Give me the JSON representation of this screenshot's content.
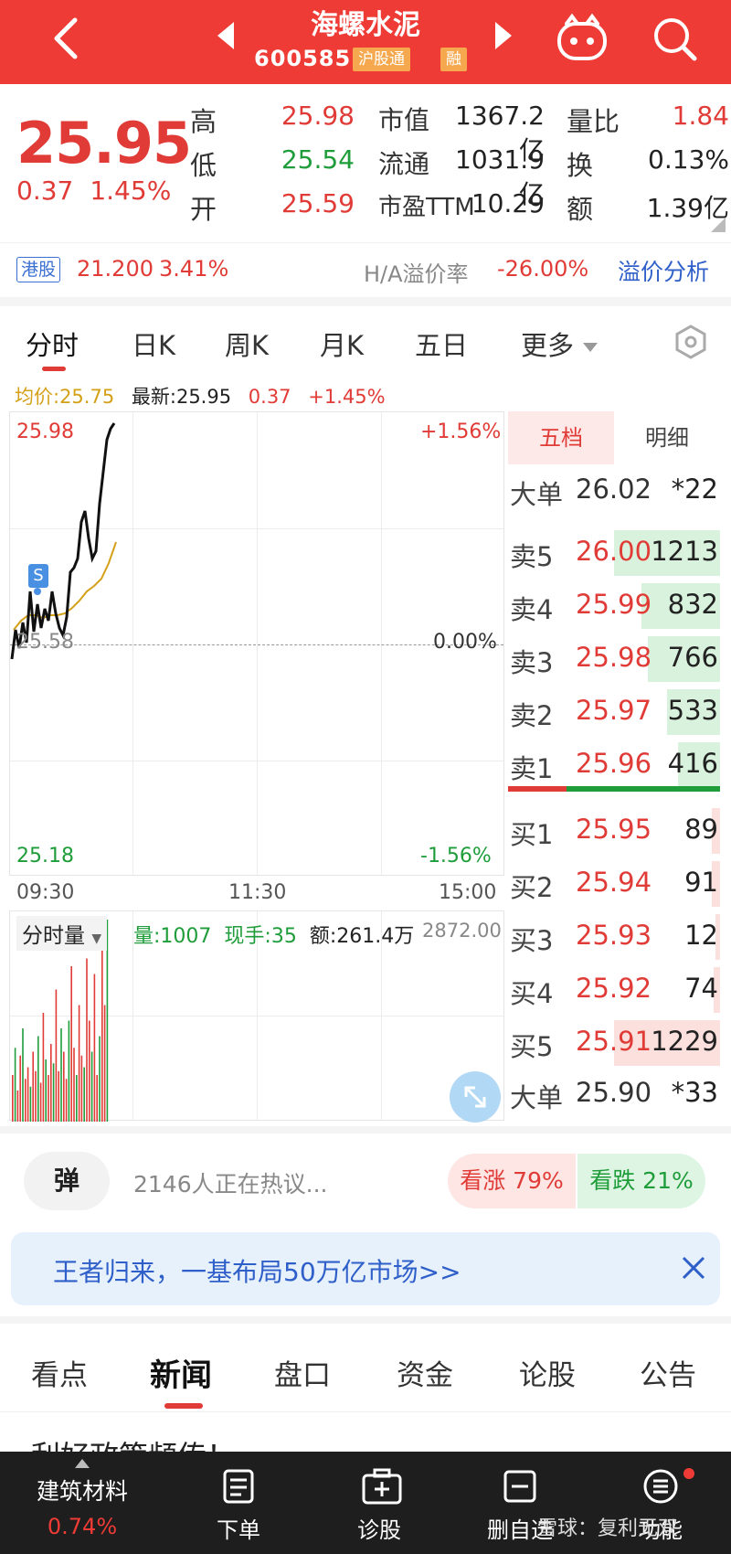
{
  "header": {
    "title": "海螺水泥",
    "code": "600585",
    "tags": [
      "沪股通",
      "融"
    ]
  },
  "quote": {
    "price": "25.95",
    "change": "0.37",
    "change_pct": "1.45%",
    "fields": [
      {
        "label": "高",
        "value": "25.98"
      },
      {
        "label": "低",
        "value": "25.54"
      },
      {
        "label": "开",
        "value": "25.59"
      }
    ],
    "mid_fields": [
      {
        "label": "市值",
        "value": "1367.2亿"
      },
      {
        "label": "流通",
        "value": "1031.9亿"
      },
      {
        "label": "市盈TTM",
        "value": "10.29"
      }
    ],
    "right_fields": [
      {
        "label": "量比",
        "value": "1.84"
      },
      {
        "label": "换",
        "value": "0.13%"
      },
      {
        "label": "额",
        "value": "1.39亿"
      }
    ]
  },
  "hk": {
    "tag": "港股",
    "price": "21.200",
    "pct": "3.41%",
    "premium_label": "H/A溢价率",
    "premium_value": "-26.00%",
    "link": "溢价分析"
  },
  "tabs": [
    "分时",
    "日K",
    "周K",
    "月K",
    "五日",
    "更多"
  ],
  "infoline": {
    "avg": "均价:25.75",
    "latest": "最新:25.95",
    "chg": "0.37",
    "pct": "+1.45%"
  },
  "chart": {
    "y_top": "25.98",
    "y_mid": "25.58",
    "y_bottom": "25.18",
    "pct_top": "+1.56%",
    "pct_mid": "0.00%",
    "pct_bottom": "-1.56%",
    "x_labels": [
      "09:30",
      "11:30",
      "15:00"
    ],
    "marker": "S"
  },
  "volume": {
    "selector": "分时量",
    "vol": "量:1007",
    "hand": "现手:35",
    "amount": "额:261.4万",
    "max": "2872.00"
  },
  "orderbook": {
    "tabs": [
      "五档",
      "明细"
    ],
    "big_sell": {
      "label": "大单",
      "price": "26.02",
      "vol": "*22"
    },
    "asks": [
      {
        "label": "卖5",
        "price": "26.00",
        "vol": "1213",
        "bar": 0.5
      },
      {
        "label": "卖4",
        "price": "25.99",
        "vol": "832",
        "bar": 0.37
      },
      {
        "label": "卖3",
        "price": "25.98",
        "vol": "766",
        "bar": 0.34
      },
      {
        "label": "卖2",
        "price": "25.97",
        "vol": "533",
        "bar": 0.25
      },
      {
        "label": "卖1",
        "price": "25.96",
        "vol": "416",
        "bar": 0.2
      }
    ],
    "bids": [
      {
        "label": "买1",
        "price": "25.95",
        "vol": "89",
        "bar": 0.04
      },
      {
        "label": "买2",
        "price": "25.94",
        "vol": "91",
        "bar": 0.04
      },
      {
        "label": "买3",
        "price": "25.93",
        "vol": "12",
        "bar": 0.02
      },
      {
        "label": "买4",
        "price": "25.92",
        "vol": "74",
        "bar": 0.03
      },
      {
        "label": "买5",
        "price": "25.91",
        "vol": "1229",
        "bar": 0.5
      }
    ],
    "big_buy": {
      "label": "大单",
      "price": "25.90",
      "vol": "*33"
    }
  },
  "discuss": {
    "button": "弹",
    "text": "2146人正在热议...",
    "bull": "看涨 79%",
    "bear": "看跌 21%"
  },
  "banner": {
    "text": "王者归来，一基布局50万亿市场>>"
  },
  "news_tabs": [
    "看点",
    "新闻",
    "盘口",
    "资金",
    "论股",
    "公告"
  ],
  "headline": "利好政策频传！…",
  "bottom": {
    "sector_name": "建筑材料",
    "sector_pct": "0.74%",
    "items": [
      "下单",
      "诊股",
      "删自选",
      "功能"
    ],
    "watermark": "雪球：复利无双"
  },
  "colors": {
    "accent": "#ef3b35",
    "up": "#e03b36",
    "down": "#1f9d3a",
    "link": "#2f5fc9"
  }
}
